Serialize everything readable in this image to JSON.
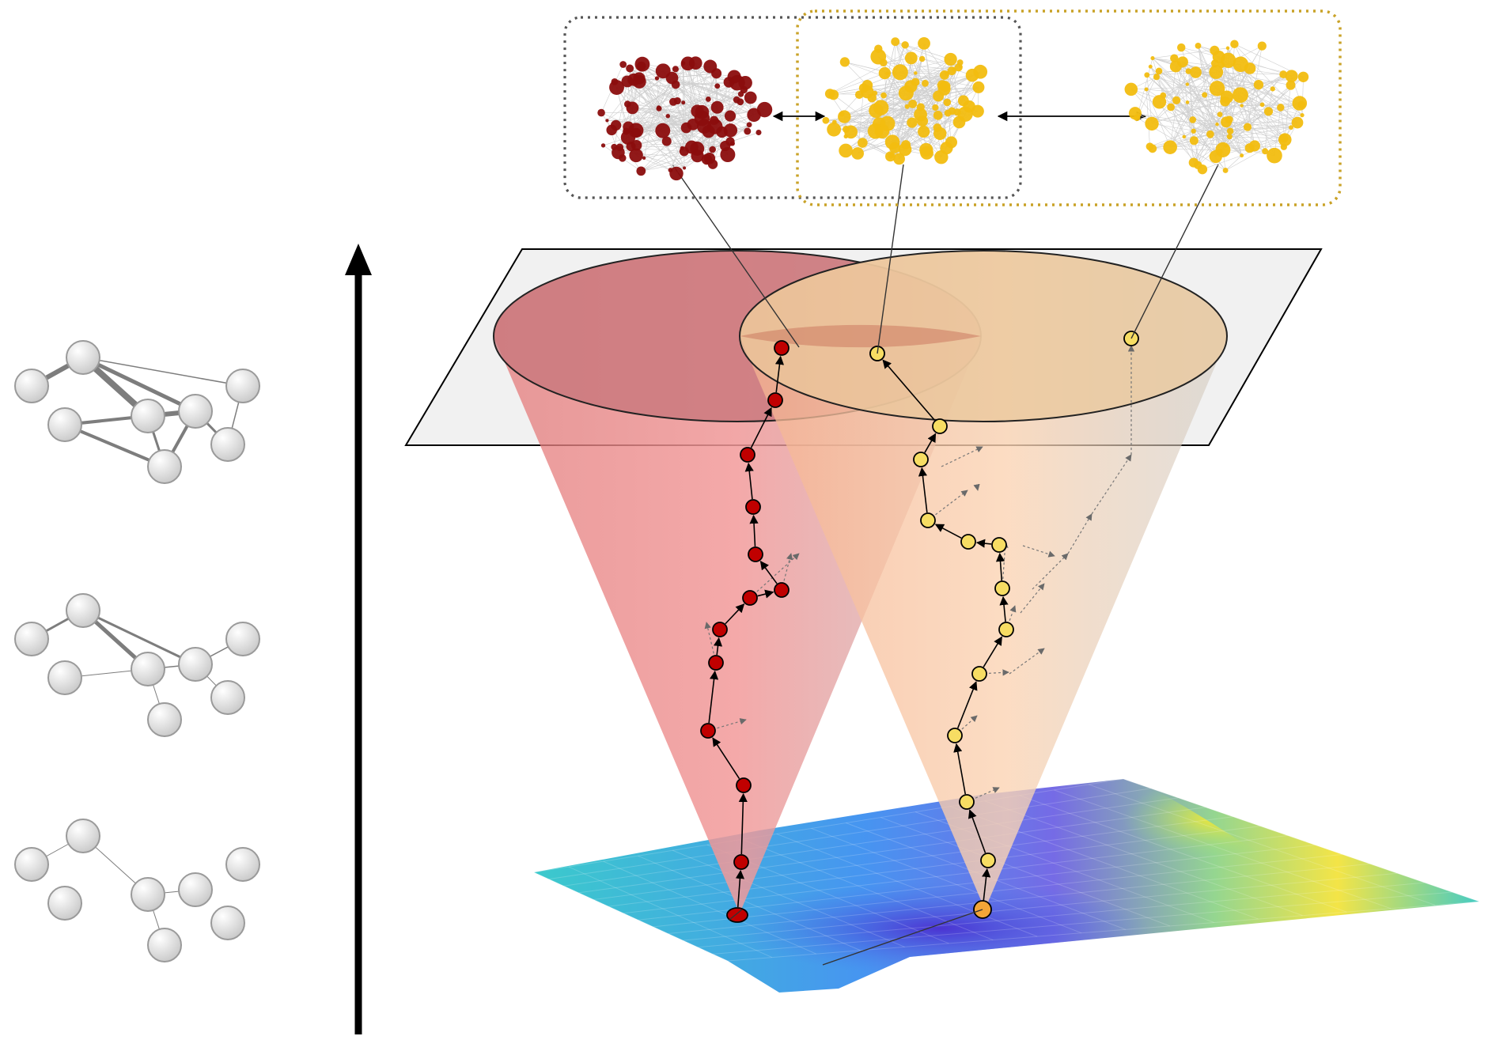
{
  "figure": {
    "accent_colors": {
      "red_cone": "#e98a8a",
      "orange_cone": "#f5c9a0",
      "red_node": "#c00000",
      "dark_red_node": "#8b0d0d",
      "yellow_node": "#f5c518",
      "gold_box": "#c9a227",
      "gray_box": "#555555",
      "landscape_low": "#5a4fd8",
      "landscape_mid": "#2fc4c4",
      "landscape_high": "#f5e23a"
    },
    "side_graphs": [
      {
        "edge_level": "dense",
        "node_count": 8
      },
      {
        "edge_level": "medium",
        "node_count": 8
      },
      {
        "edge_level": "sparse",
        "node_count": 8
      }
    ],
    "top_networks": [
      {
        "name": "network-dark-red",
        "color": "#8b0d0d"
      },
      {
        "name": "network-yellow-1",
        "color": "#f2bd10"
      },
      {
        "name": "network-yellow-2",
        "color": "#f2bd10"
      }
    ],
    "walks": {
      "red_node_count": 13,
      "yellow_node_count": 14
    },
    "icons": {
      "vertical_axis": "up-arrow-icon",
      "double_arrow": "double-arrow-icon"
    }
  }
}
